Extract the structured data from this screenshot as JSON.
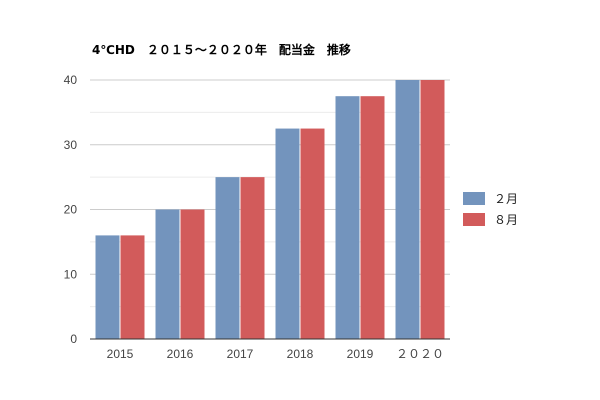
{
  "chart_data": {
    "type": "bar",
    "title": "4℃HD　２０１５～２０２０年　配当金　推移",
    "xlabel": "",
    "ylabel": "",
    "categories": [
      "2015",
      "2016",
      "2017",
      "2018",
      "2019",
      "２０２０"
    ],
    "ylim": [
      0,
      40
    ],
    "yticks": [
      0,
      10,
      20,
      30,
      40
    ],
    "grid": true,
    "legend_position": "right",
    "series": [
      {
        "name": "２月",
        "color": "#7394bd",
        "values": [
          16,
          20,
          25,
          32.5,
          37.5,
          40
        ]
      },
      {
        "name": "８月",
        "color": "#d25b5b",
        "values": [
          16,
          20,
          25,
          32.5,
          37.5,
          40
        ]
      }
    ]
  }
}
